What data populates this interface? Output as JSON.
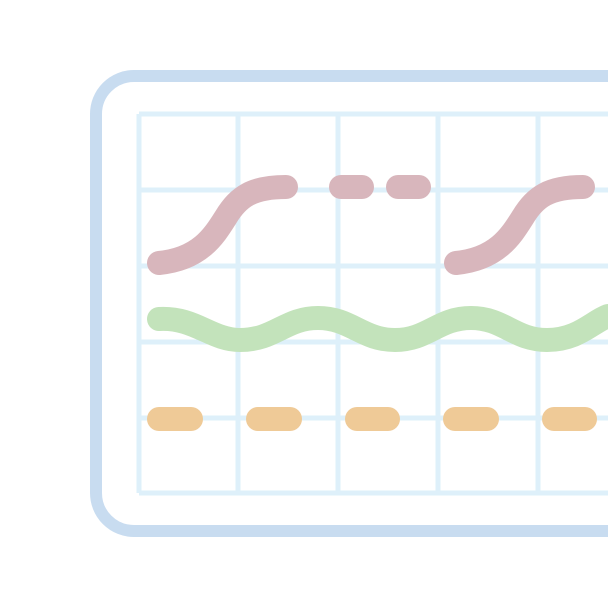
{
  "illustration": {
    "icon_name": "timeline-grid-icon",
    "colors": {
      "background": "#ffffff",
      "frame": "#c8dcf0",
      "grid": "#def0fa",
      "track_top": "#d8b6bc",
      "track_middle": "#c3e3bb",
      "track_bottom": "#efca97"
    }
  }
}
